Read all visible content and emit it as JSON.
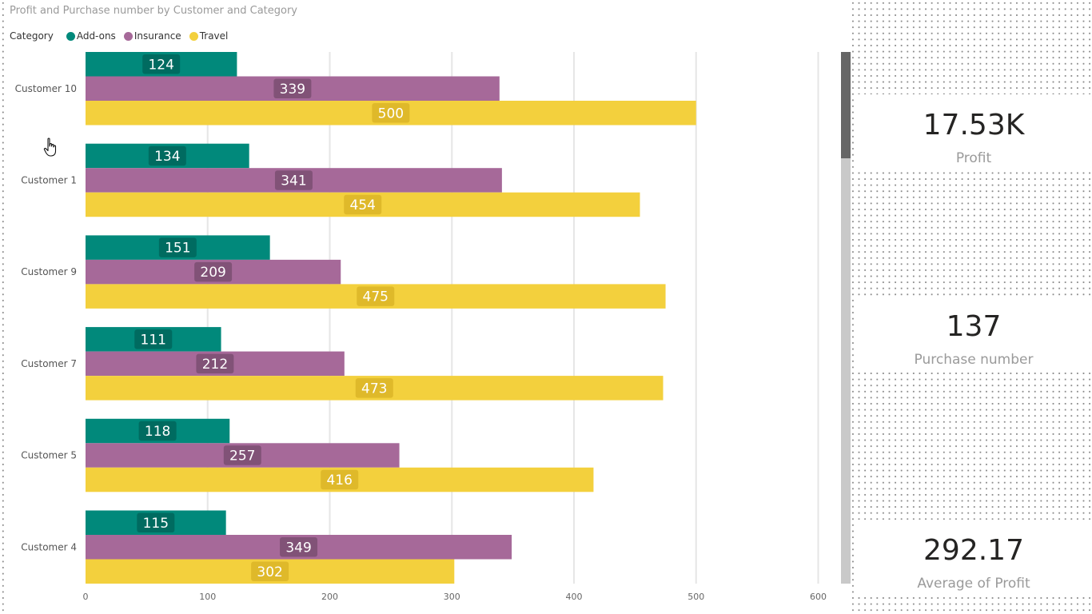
{
  "chart_data": {
    "type": "bar",
    "orientation": "horizontal",
    "title": "Profit and Purchase number by Customer and Category",
    "legend_title": "Category",
    "legend_position": "top-left",
    "categories": [
      "Customer 10",
      "Customer 1",
      "Customer 9",
      "Customer 7",
      "Customer 5",
      "Customer 4"
    ],
    "series": [
      {
        "name": "Add-ons",
        "color": "#01897B",
        "values": [
          124,
          134,
          151,
          111,
          118,
          115
        ]
      },
      {
        "name": "Insurance",
        "color": "#A66999",
        "values": [
          339,
          341,
          209,
          212,
          257,
          349
        ]
      },
      {
        "name": "Travel",
        "color": "#F3D03D",
        "values": [
          500,
          454,
          475,
          473,
          416,
          302
        ]
      }
    ],
    "xlim": [
      0,
      600
    ],
    "xticks": [
      0,
      100,
      200,
      300,
      400,
      500,
      600
    ],
    "grid": true
  },
  "cards": {
    "profit": {
      "value": "17.53K",
      "label": "Profit"
    },
    "purchase": {
      "value": "137",
      "label": "Purchase number"
    },
    "average": {
      "value": "292.17",
      "label": "Average of Profit"
    }
  }
}
